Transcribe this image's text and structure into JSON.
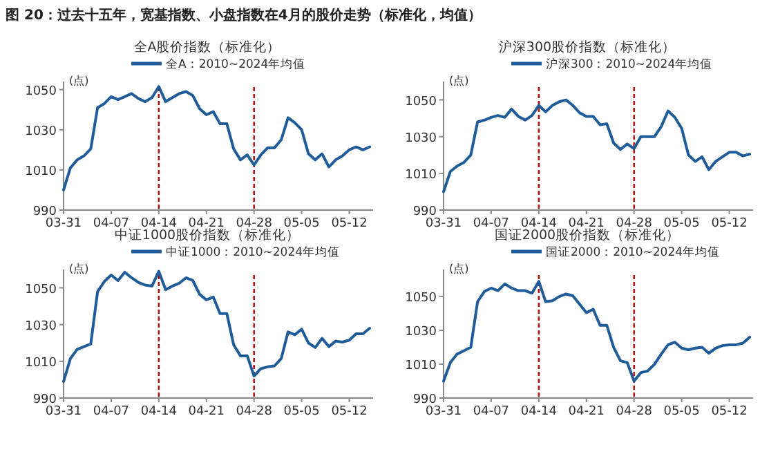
{
  "chart_data": [
    {
      "type": "line",
      "title": "全A股价指数（标准化）",
      "ylabel": "(点)",
      "legend": "top",
      "annotations": [
        "图 20：过去十五年，宽基指数、小盘指数在4月的股价走势（标准化，均值）"
      ],
      "categories": [
        "03-31",
        null,
        null,
        null,
        null,
        null,
        null,
        "04-07",
        null,
        null,
        null,
        null,
        null,
        null,
        "04-14",
        null,
        null,
        null,
        null,
        null,
        null,
        "04-21",
        null,
        null,
        null,
        null,
        null,
        null,
        "04-28",
        null,
        null,
        null,
        null,
        null,
        null,
        "05-05",
        null,
        null,
        null,
        null,
        null,
        null,
        "05-12",
        null,
        null,
        null
      ],
      "ylim": [
        990,
        1054
      ],
      "yticks": [
        990,
        1010,
        1030,
        1050
      ],
      "series": [
        {
          "name": "全A：2010~2024年均值",
          "color": "#1f5c99",
          "values": [
            1000,
            1011,
            1015,
            1017,
            1020.5,
            1041,
            1043,
            1046.5,
            1045,
            1046.5,
            1048,
            1045.5,
            1044,
            1046,
            1051.5,
            1044,
            1046,
            1048,
            1049,
            1047,
            1040.5,
            1037.5,
            1039,
            1033,
            1033,
            1020.5,
            1015,
            1017.5,
            1012.5,
            1017.5,
            1021,
            1021,
            1025,
            1036,
            1033.5,
            1030,
            1018,
            1015,
            1018,
            1011.5,
            1015,
            1017,
            1020,
            1021.5,
            1020,
            1021.5
          ]
        }
      ],
      "ref_lines": [
        {
          "axis": "x",
          "value": "04-14",
          "color": "#c00000",
          "line_style": "dashed"
        },
        {
          "axis": "x",
          "value": "04-28",
          "color": "#c00000",
          "line_style": "dashed"
        }
      ]
    },
    {
      "type": "line",
      "title": "沪深300股价指数（标准化）",
      "ylabel": "(点)",
      "legend": "top",
      "categories": [
        "03-31",
        null,
        null,
        null,
        null,
        null,
        null,
        "04-07",
        null,
        null,
        null,
        null,
        null,
        null,
        "04-14",
        null,
        null,
        null,
        null,
        null,
        null,
        "04-21",
        null,
        null,
        null,
        null,
        null,
        null,
        "04-28",
        null,
        null,
        null,
        null,
        null,
        null,
        "05-05",
        null,
        null,
        null,
        null,
        null,
        null,
        "05-12",
        null,
        null,
        null
      ],
      "ylim": [
        990,
        1060
      ],
      "yticks": [
        990,
        1010,
        1030,
        1050
      ],
      "series": [
        {
          "name": "沪深300：2010~2024年均值",
          "color": "#1f5c99",
          "values": [
            1000,
            1011,
            1014,
            1016,
            1020,
            1038,
            1039,
            1040.5,
            1041.5,
            1040.5,
            1045,
            1041,
            1039,
            1041.5,
            1047,
            1043.5,
            1047,
            1049,
            1050,
            1047,
            1043,
            1041,
            1041,
            1036.5,
            1037,
            1026.5,
            1023,
            1026,
            1023.5,
            1030,
            1030,
            1030,
            1035.5,
            1044,
            1040.5,
            1034.5,
            1020,
            1016.5,
            1019,
            1012,
            1016.5,
            1019,
            1021.5,
            1021.5,
            1019.5,
            1020.5
          ]
        }
      ],
      "ref_lines": [
        {
          "axis": "x",
          "value": "04-14",
          "color": "#c00000",
          "line_style": "dashed"
        },
        {
          "axis": "x",
          "value": "04-28",
          "color": "#c00000",
          "line_style": "dashed"
        }
      ]
    },
    {
      "type": "line",
      "title": "中证1000股价指数（标准化）",
      "ylabel": "(点)",
      "legend": "top",
      "categories": [
        "03-31",
        null,
        null,
        null,
        null,
        null,
        null,
        "04-07",
        null,
        null,
        null,
        null,
        null,
        null,
        "04-14",
        null,
        null,
        null,
        null,
        null,
        null,
        "04-21",
        null,
        null,
        null,
        null,
        null,
        null,
        "04-28",
        null,
        null,
        null,
        null,
        null,
        null,
        "05-05",
        null,
        null,
        null,
        null,
        null,
        null,
        "05-12",
        null,
        null,
        null
      ],
      "ylim": [
        990,
        1060
      ],
      "yticks": [
        990,
        1010,
        1030,
        1050
      ],
      "series": [
        {
          "name": "中证1000：2010~2024年均值",
          "color": "#1f5c99",
          "values": [
            999,
            1011.5,
            1016.5,
            1018,
            1019.5,
            1048,
            1053.5,
            1057,
            1054,
            1058.5,
            1055.5,
            1053,
            1051.5,
            1051,
            1059,
            1049,
            1051,
            1052.5,
            1055.5,
            1054,
            1046.5,
            1043.5,
            1045,
            1036,
            1036,
            1019,
            1013,
            1013,
            1002,
            1006,
            1007,
            1007.5,
            1011.5,
            1026,
            1024.5,
            1027.5,
            1020,
            1017.5,
            1022.5,
            1018,
            1021,
            1020.5,
            1021.5,
            1025,
            1025,
            1028
          ]
        }
      ],
      "ref_lines": [
        {
          "axis": "x",
          "value": "04-14",
          "color": "#c00000",
          "line_style": "dashed"
        },
        {
          "axis": "x",
          "value": "04-28",
          "color": "#c00000",
          "line_style": "dashed"
        }
      ]
    },
    {
      "type": "line",
      "title": "国证2000股价指数（标准化）",
      "ylabel": "(点)",
      "legend": "top",
      "categories": [
        "03-31",
        null,
        null,
        null,
        null,
        null,
        null,
        "04-07",
        null,
        null,
        null,
        null,
        null,
        null,
        "04-14",
        null,
        null,
        null,
        null,
        null,
        null,
        "04-21",
        null,
        null,
        null,
        null,
        null,
        null,
        "04-28",
        null,
        null,
        null,
        null,
        null,
        null,
        "05-05",
        null,
        null,
        null,
        null,
        null,
        null,
        "05-12",
        null,
        null,
        null
      ],
      "ylim": [
        990,
        1066
      ],
      "yticks": [
        990,
        1010,
        1030,
        1050
      ],
      "series": [
        {
          "name": "国证2000：2010~2024年均值",
          "color": "#1f5c99",
          "values": [
            1000,
            1011,
            1016,
            1018,
            1020,
            1047,
            1053,
            1055,
            1053.5,
            1057.5,
            1055,
            1053.5,
            1053.5,
            1052,
            1059,
            1047,
            1047.5,
            1050,
            1051.5,
            1050.5,
            1045.5,
            1040.5,
            1042.5,
            1033,
            1033,
            1020,
            1012,
            1011,
            1000,
            1005,
            1006,
            1010,
            1016,
            1021.5,
            1023,
            1019.5,
            1018.5,
            1019.5,
            1020,
            1016.5,
            1019.5,
            1021,
            1021.5,
            1021.5,
            1022.5,
            1026
          ]
        }
      ],
      "ref_lines": [
        {
          "axis": "x",
          "value": "04-14",
          "color": "#c00000",
          "line_style": "dashed"
        },
        {
          "axis": "x",
          "value": "04-28",
          "color": "#c00000",
          "line_style": "dashed"
        }
      ]
    }
  ]
}
